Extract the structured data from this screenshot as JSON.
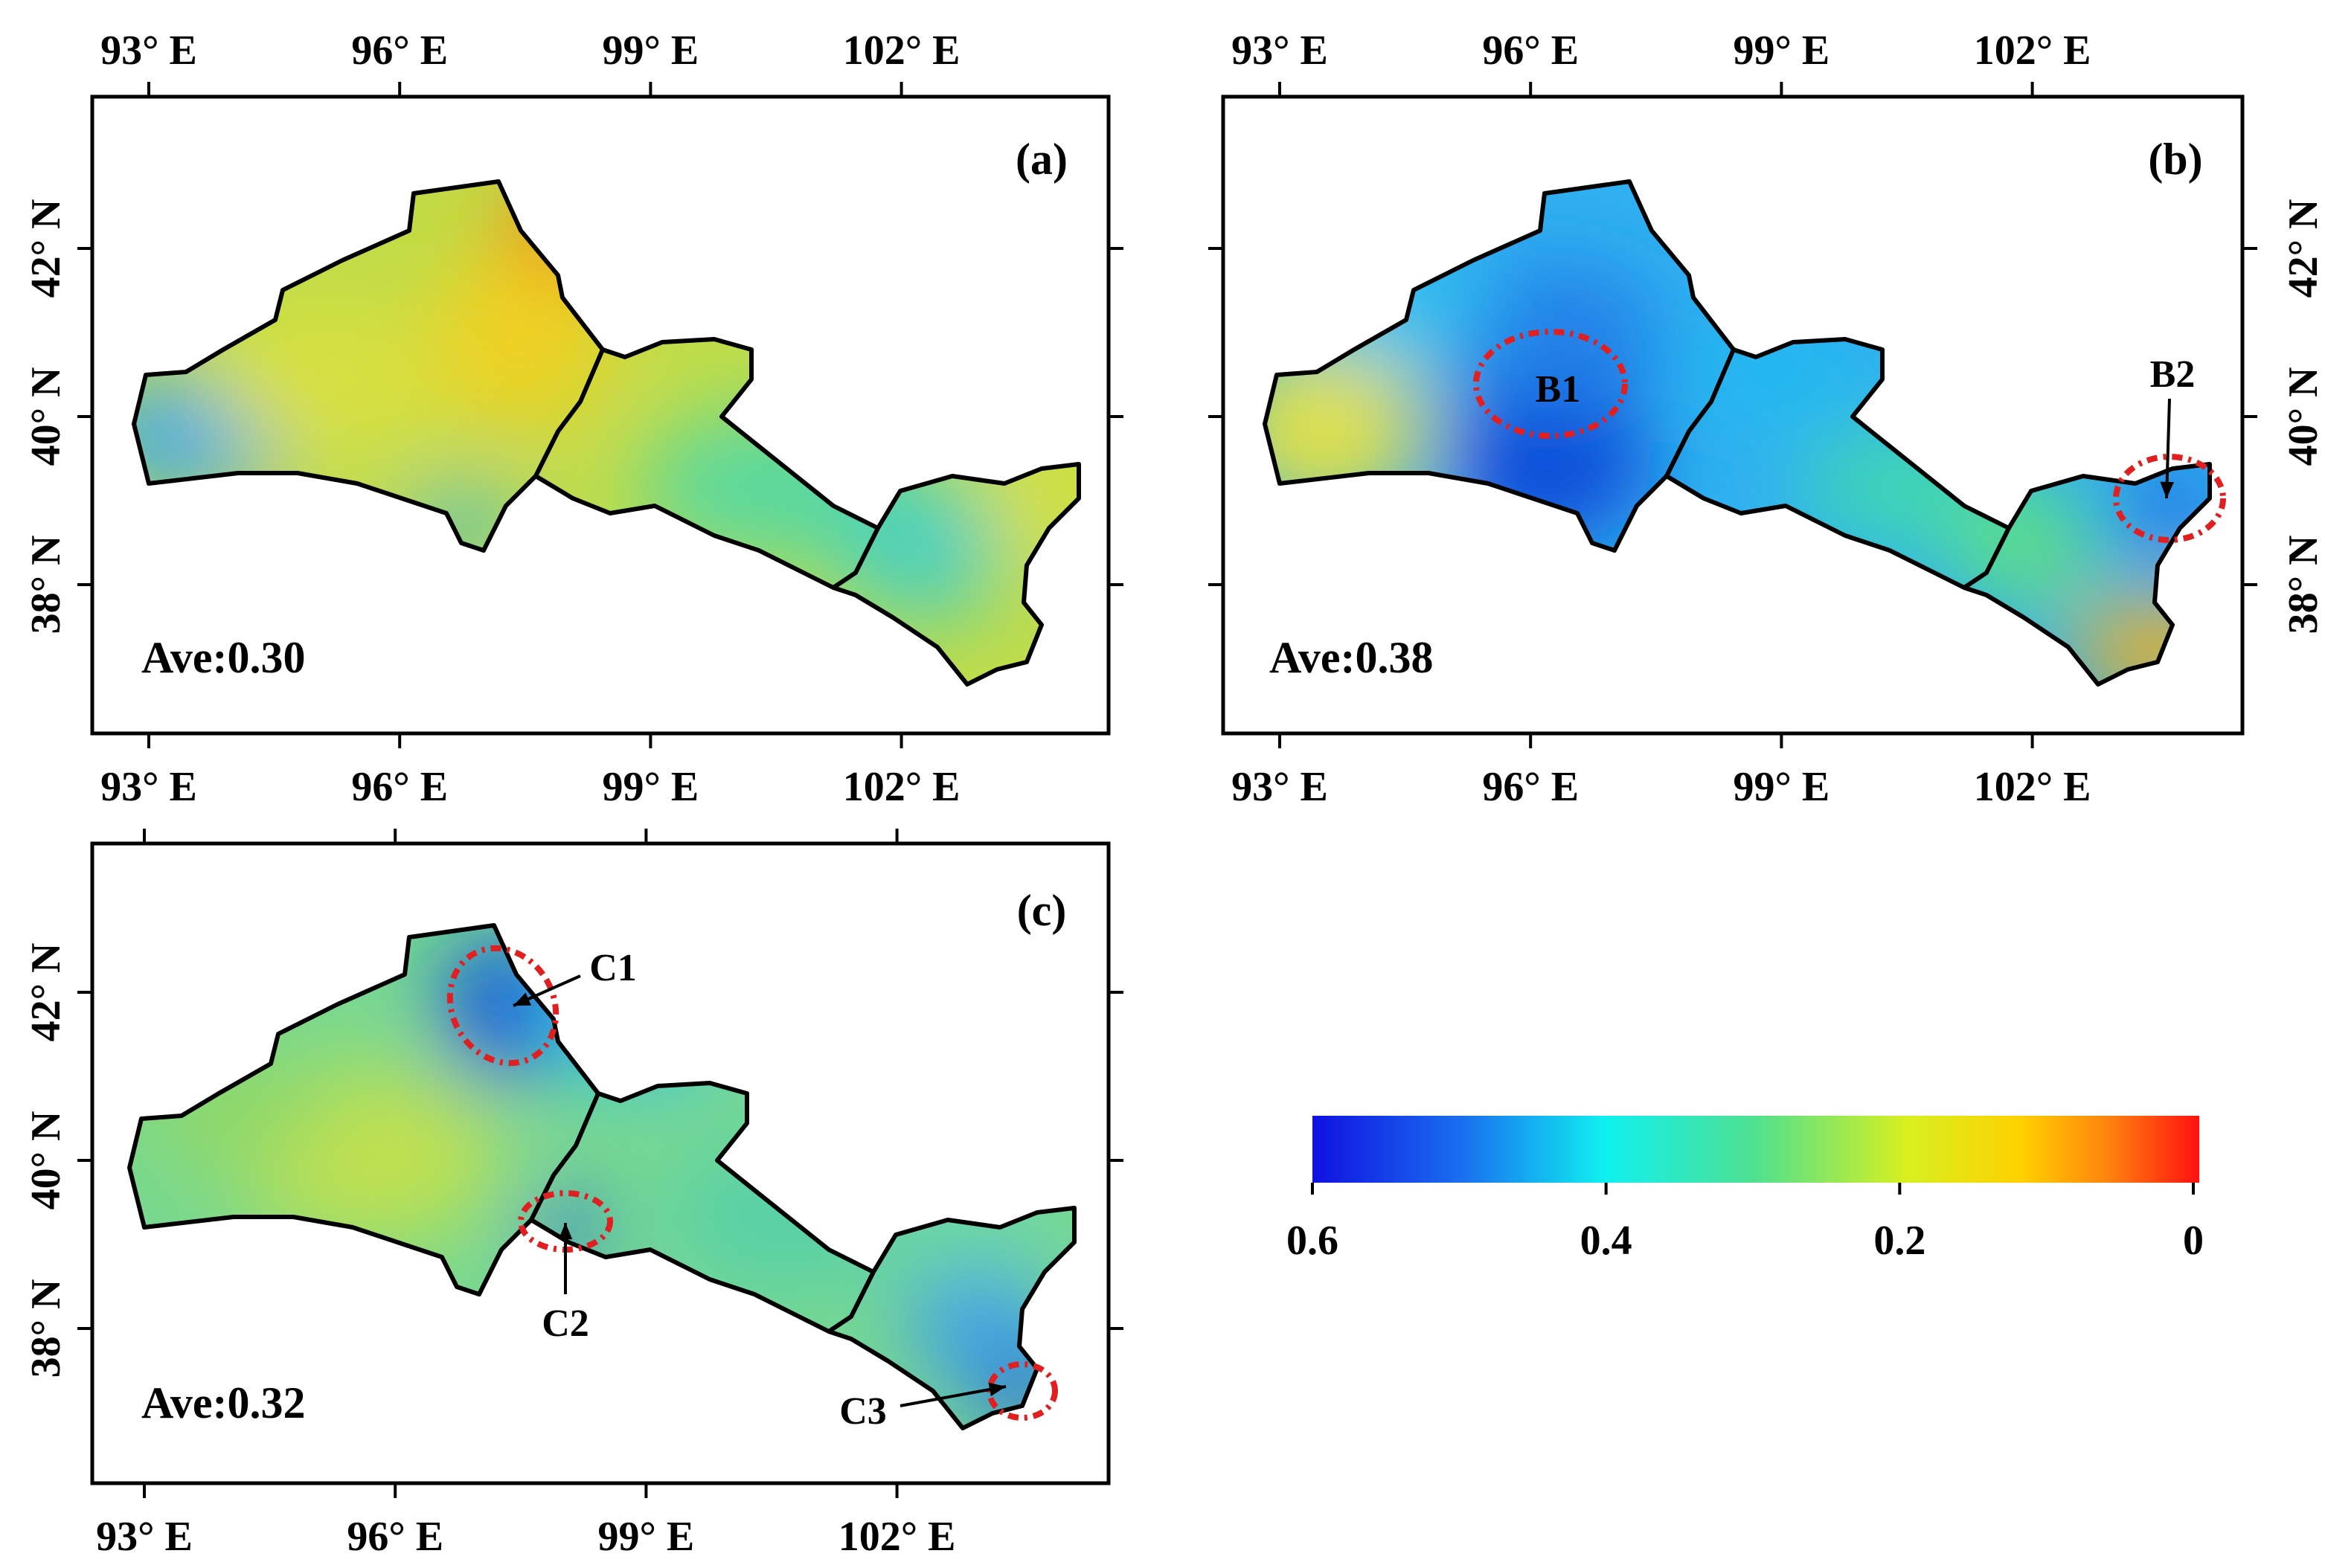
{
  "lon_ticks": [
    {
      "value": 93,
      "label": "93° E"
    },
    {
      "value": 96,
      "label": "96° E"
    },
    {
      "value": 99,
      "label": "99° E"
    },
    {
      "value": 102,
      "label": "102° E"
    }
  ],
  "lat_ticks": [
    {
      "value": 42,
      "label": "42° N"
    },
    {
      "value": 40,
      "label": "40° N"
    },
    {
      "value": 38,
      "label": "38° N"
    }
  ],
  "panels": [
    {
      "label": "(a)",
      "average": "Ave:0.30"
    },
    {
      "label": "(b)",
      "average": "Ave:0.38",
      "annotations": [
        "B1",
        "B2"
      ]
    },
    {
      "label": "(c)",
      "average": "Ave:0.32",
      "annotations": [
        "C1",
        "C2",
        "C3"
      ]
    }
  ],
  "colorbar": {
    "range": [
      0.6,
      0
    ],
    "ticks": [
      0.6,
      0.4,
      0.2,
      0
    ]
  }
}
